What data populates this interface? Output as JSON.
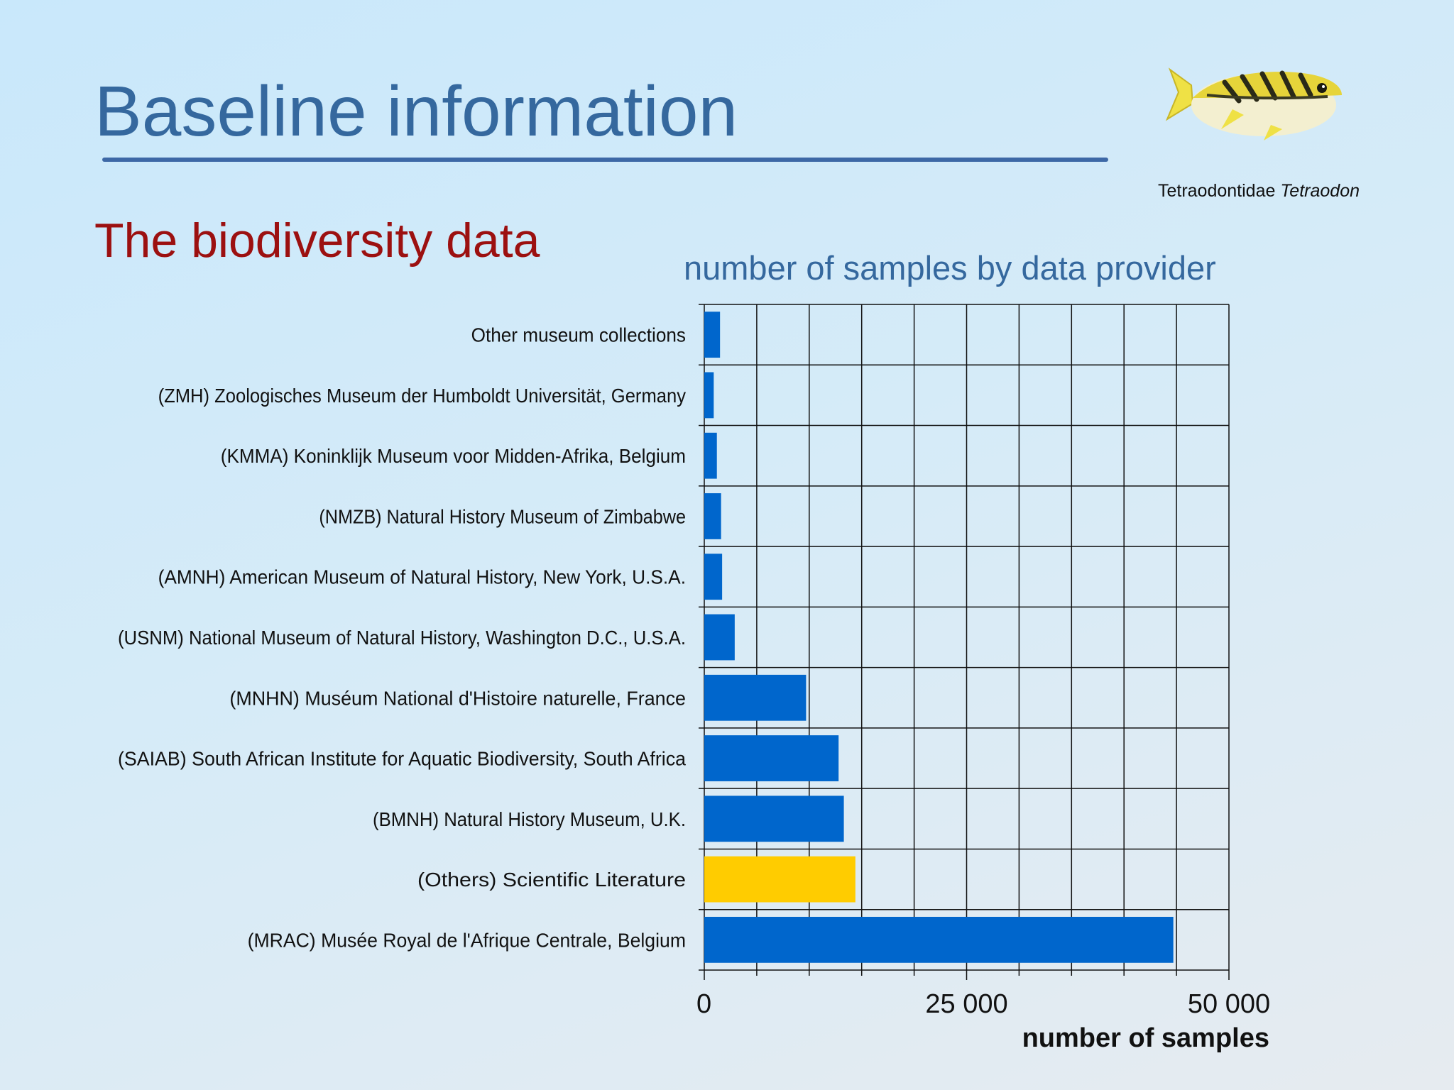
{
  "slide": {
    "title": "Baseline information",
    "subtitle": "The biodiversity data"
  },
  "image": {
    "caption_family": "Tetraodontidae",
    "caption_genus": "Tetraodon"
  },
  "colors": {
    "title": "#35689e",
    "subtitle": "#9c1010",
    "bar_default": "#0066cc",
    "bar_highlight": "#ffcc00"
  },
  "chart_data": {
    "type": "bar",
    "orientation": "horizontal",
    "title": "number of samples by data provider",
    "xlabel": "number of samples",
    "ylabel": "",
    "xlim": [
      0,
      50000
    ],
    "xticks": [
      0,
      25000,
      50000
    ],
    "xtick_labels": [
      "0",
      "25 000",
      "50 000"
    ],
    "grid": true,
    "categories": [
      "Other museum collections",
      "(ZMH) Zoologisches Museum der Humboldt Universität, Germany",
      "(KMMA) Koninklijk Museum voor Midden-Afrika, Belgium",
      "(NMZB) Natural History Museum of Zimbabwe",
      "(AMNH) American Museum of Natural History, New York, U.S.A.",
      "(USNM) National Museum of Natural History, Washington D.C., U.S.A.",
      "(MNHN) Muséum National d'Histoire naturelle, France",
      "(SAIAB) South African Institute for Aquatic Biodiversity, South Africa",
      "(BMNH) Natural History Museum, U.K.",
      "(Others) Scientific Literature",
      "(MRAC) Musée Royal de l'Afrique Centrale, Belgium"
    ],
    "values": [
      1500,
      900,
      1200,
      1600,
      1700,
      2900,
      9700,
      12800,
      13300,
      14400,
      44700
    ],
    "highlight": [
      "(Others) Scientific Literature"
    ]
  }
}
